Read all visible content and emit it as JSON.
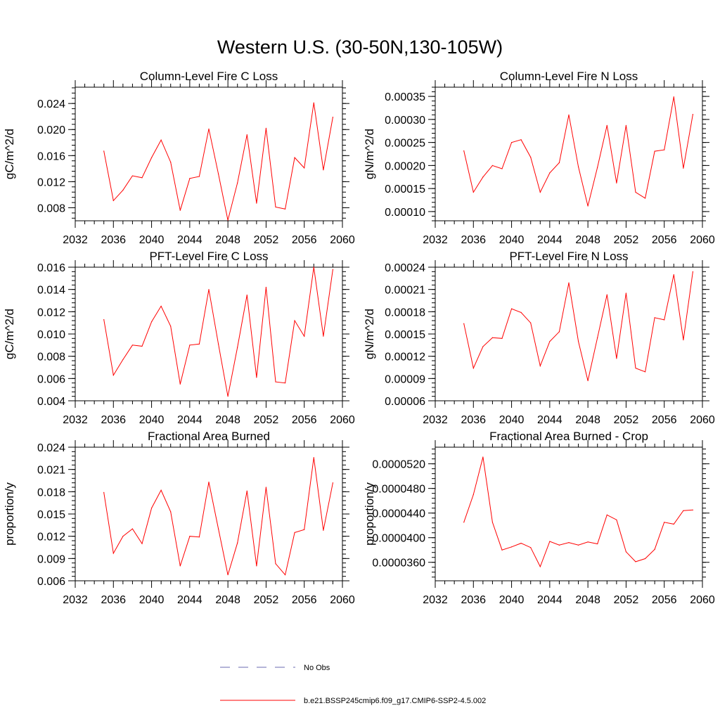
{
  "title": "Western U.S. (30-50N,130-105W)",
  "colors": {
    "model": "#ff0000",
    "obs": "#6a6ab0",
    "axis": "#000000"
  },
  "legend": {
    "obs_label": "No Obs",
    "model_label": "b.e21.BSSP245cmip6.f09_g17.CMIP6-SSP2-4.5.002"
  },
  "chart_data": [
    {
      "type": "line",
      "title": "Column-Level Fire C Loss",
      "ylabel": "gC/m^2/d",
      "xlim": [
        2032,
        2060
      ],
      "ylim": [
        0.006,
        0.0265
      ],
      "yticks": [
        "0.008",
        "0.012",
        "0.016",
        "0.020",
        "0.024"
      ],
      "x": [
        2035,
        2036,
        2037,
        2038,
        2039,
        2040,
        2041,
        2042,
        2043,
        2044,
        2045,
        2046,
        2047,
        2048,
        2049,
        2050,
        2051,
        2052,
        2053,
        2054,
        2055,
        2056,
        2057,
        2058,
        2059
      ],
      "series": [
        {
          "values": [
            0.0167,
            0.0091,
            0.0107,
            0.0129,
            0.0126,
            0.0157,
            0.0184,
            0.015,
            0.0076,
            0.0125,
            0.0128,
            0.0201,
            0.0132,
            0.0061,
            0.0118,
            0.0192,
            0.0087,
            0.0202,
            0.0081,
            0.0078,
            0.0157,
            0.0141,
            0.0241,
            0.0138,
            0.0219
          ]
        }
      ]
    },
    {
      "type": "line",
      "title": "Column-Level Fire N Loss",
      "ylabel": "gN/m^2/d",
      "xlim": [
        2032,
        2060
      ],
      "ylim": [
        8e-05,
        0.00037
      ],
      "yticks": [
        "0.00010",
        "0.00015",
        "0.00020",
        "0.00025",
        "0.00030",
        "0.00035"
      ],
      "x": [
        2035,
        2036,
        2037,
        2038,
        2039,
        2040,
        2041,
        2042,
        2043,
        2044,
        2045,
        2046,
        2047,
        2048,
        2049,
        2050,
        2051,
        2052,
        2053,
        2054,
        2055,
        2056,
        2057,
        2058,
        2059
      ],
      "series": [
        {
          "values": [
            0.000232,
            0.000142,
            0.000175,
            0.0002,
            0.000193,
            0.00025,
            0.000256,
            0.000218,
            0.000142,
            0.000184,
            0.000206,
            0.00031,
            0.000197,
            0.000112,
            0.000196,
            0.000287,
            0.000162,
            0.000287,
            0.000142,
            0.000129,
            0.000231,
            0.000234,
            0.000349,
            0.000194,
            0.000311
          ]
        }
      ]
    },
    {
      "type": "line",
      "title": "PFT-Level Fire C Loss",
      "ylabel": "gC/m^2/d",
      "xlim": [
        2032,
        2060
      ],
      "ylim": [
        0.004,
        0.016
      ],
      "yticks": [
        "0.004",
        "0.006",
        "0.008",
        "0.010",
        "0.012",
        "0.014",
        "0.016"
      ],
      "x": [
        2035,
        2036,
        2037,
        2038,
        2039,
        2040,
        2041,
        2042,
        2043,
        2044,
        2045,
        2046,
        2047,
        2048,
        2049,
        2050,
        2051,
        2052,
        2053,
        2054,
        2055,
        2056,
        2057,
        2058,
        2059
      ],
      "series": [
        {
          "values": [
            0.0113,
            0.0063,
            0.0077,
            0.009,
            0.0089,
            0.0111,
            0.0125,
            0.0107,
            0.0055,
            0.009,
            0.0091,
            0.014,
            0.0091,
            0.0044,
            0.0088,
            0.0135,
            0.0061,
            0.0142,
            0.0057,
            0.0056,
            0.0112,
            0.0098,
            0.016,
            0.0098,
            0.0158
          ]
        }
      ]
    },
    {
      "type": "line",
      "title": "PFT-Level Fire N Loss",
      "ylabel": "gN/m^2/d",
      "xlim": [
        2032,
        2060
      ],
      "ylim": [
        6e-05,
        0.00024
      ],
      "yticks": [
        "0.00006",
        "0.00009",
        "0.00012",
        "0.00015",
        "0.00018",
        "0.00021",
        "0.00024"
      ],
      "x": [
        2035,
        2036,
        2037,
        2038,
        2039,
        2040,
        2041,
        2042,
        2043,
        2044,
        2045,
        2046,
        2047,
        2048,
        2049,
        2050,
        2051,
        2052,
        2053,
        2054,
        2055,
        2056,
        2057,
        2058,
        2059
      ],
      "series": [
        {
          "values": [
            0.000164,
            0.000104,
            0.000133,
            0.000145,
            0.000144,
            0.000184,
            0.000179,
            0.000165,
            0.000107,
            0.00014,
            0.000153,
            0.000219,
            0.00014,
            8.7e-05,
            0.000145,
            0.000203,
            0.000117,
            0.000205,
            0.000104,
            9.9e-05,
            0.000172,
            0.000169,
            0.00023,
            0.000142,
            0.000234
          ]
        }
      ]
    },
    {
      "type": "line",
      "title": "Fractional Area Burned",
      "ylabel": "proportion/y",
      "xlim": [
        2032,
        2060
      ],
      "ylim": [
        0.006,
        0.024
      ],
      "yticks": [
        "0.006",
        "0.009",
        "0.012",
        "0.015",
        "0.018",
        "0.021",
        "0.024"
      ],
      "x": [
        2035,
        2036,
        2037,
        2038,
        2039,
        2040,
        2041,
        2042,
        2043,
        2044,
        2045,
        2046,
        2047,
        2048,
        2049,
        2050,
        2051,
        2052,
        2053,
        2054,
        2055,
        2056,
        2057,
        2058,
        2059
      ],
      "series": [
        {
          "values": [
            0.0179,
            0.0097,
            0.012,
            0.013,
            0.011,
            0.0158,
            0.0182,
            0.0153,
            0.008,
            0.012,
            0.0119,
            0.0193,
            0.013,
            0.0068,
            0.0111,
            0.0181,
            0.008,
            0.0186,
            0.0083,
            0.0068,
            0.0125,
            0.0129,
            0.0226,
            0.0128,
            0.0192
          ]
        }
      ]
    },
    {
      "type": "line",
      "title": "Fractional Area Burned - Crop",
      "ylabel": "proportion/y",
      "xlim": [
        2032,
        2060
      ],
      "ylim": [
        3.3e-05,
        5.47e-05
      ],
      "yticks": [
        "0.0000360",
        "0.0000400",
        "0.0000440",
        "0.0000480",
        "0.0000520"
      ],
      "x": [
        2035,
        2036,
        2037,
        2038,
        2039,
        2040,
        2041,
        2042,
        2043,
        2044,
        2045,
        2046,
        2047,
        2048,
        2049,
        2050,
        2051,
        2052,
        2053,
        2054,
        2055,
        2056,
        2057,
        2058,
        2059
      ],
      "series": [
        {
          "values": [
            4.25e-05,
            4.7e-05,
            5.31e-05,
            4.25e-05,
            3.8e-05,
            3.85e-05,
            3.91e-05,
            3.84e-05,
            3.53e-05,
            3.94e-05,
            3.88e-05,
            3.92e-05,
            3.88e-05,
            3.93e-05,
            3.9e-05,
            4.37e-05,
            4.29e-05,
            3.77e-05,
            3.61e-05,
            3.66e-05,
            3.81e-05,
            4.25e-05,
            4.22e-05,
            4.44e-05,
            4.45e-05
          ]
        }
      ]
    }
  ]
}
